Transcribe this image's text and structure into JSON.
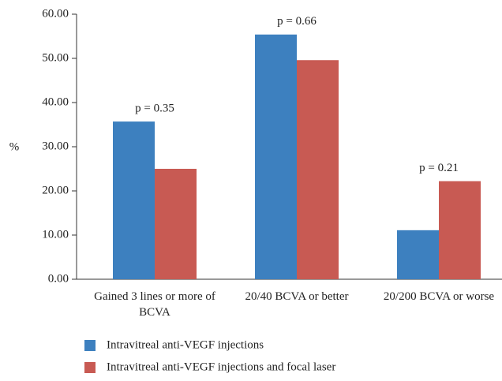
{
  "chart_data": {
    "type": "bar",
    "y_label": "%",
    "categories": [
      "Gained 3 lines or more of BCVA",
      "20/40 BCVA or better",
      "20/200 BCVA or worse"
    ],
    "series": [
      {
        "name": "Intravitreal anti-VEGF injections",
        "color": "#3d80bf",
        "values": [
          35.7,
          55.4,
          11.1
        ]
      },
      {
        "name": "Intravitreal anti-VEGF injections and focal laser",
        "color": "#c85a53",
        "values": [
          25.0,
          49.6,
          22.2
        ]
      }
    ],
    "annotations": [
      "p = 0.35",
      "p = 0.66",
      "p = 0.21"
    ],
    "ylim": [
      0,
      60
    ],
    "yticks": [
      {
        "value": 0,
        "label": "0.00"
      },
      {
        "value": 10,
        "label": "10.00"
      },
      {
        "value": 20,
        "label": "20.00"
      },
      {
        "value": 30,
        "label": "30.00"
      },
      {
        "value": 40,
        "label": "40.00"
      },
      {
        "value": 50,
        "label": "50.00"
      },
      {
        "value": 60,
        "label": "60.00"
      }
    ],
    "legend": "bottom"
  }
}
